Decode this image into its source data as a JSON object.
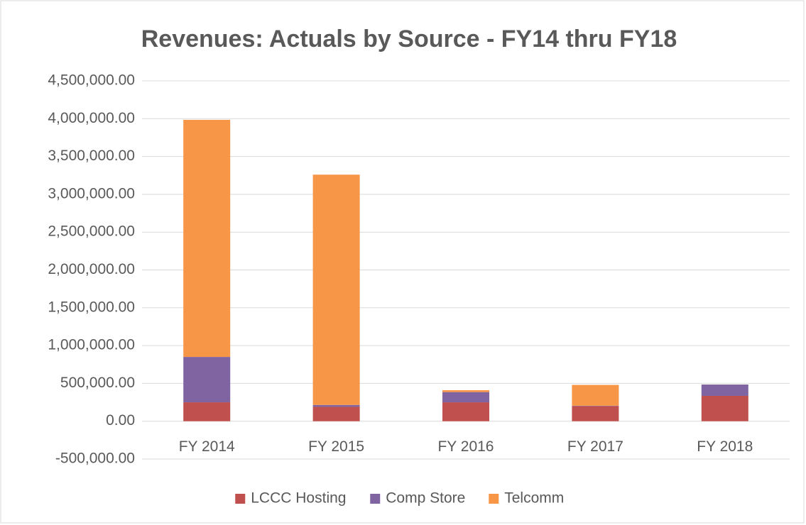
{
  "chart_data": {
    "type": "stacked_bar",
    "title": "Revenues: Actuals by Source - FY14 thru FY18",
    "categories": [
      "FY 2014",
      "FY 2015",
      "FY 2016",
      "FY 2017",
      "FY 2018"
    ],
    "series": [
      {
        "name": "LCCC Hosting",
        "color": "#c0504d",
        "values": [
          250000,
          190000,
          250000,
          200000,
          335000
        ]
      },
      {
        "name": "Comp Store",
        "color": "#8064a2",
        "values": [
          600000,
          25000,
          135000,
          5000,
          150000
        ]
      },
      {
        "name": "Telcomm",
        "color": "#f79646",
        "values": [
          3135000,
          3045000,
          25000,
          275000,
          0
        ]
      }
    ],
    "ylim": [
      -500000,
      4500000
    ],
    "yticks": [
      {
        "value": -500000,
        "label": "-500,000.00"
      },
      {
        "value": 0,
        "label": "0.00"
      },
      {
        "value": 500000,
        "label": "500,000.00"
      },
      {
        "value": 1000000,
        "label": "1,000,000.00"
      },
      {
        "value": 1500000,
        "label": "1,500,000.00"
      },
      {
        "value": 2000000,
        "label": "2,000,000.00"
      },
      {
        "value": 2500000,
        "label": "2,500,000.00"
      },
      {
        "value": 3000000,
        "label": "3,000,000.00"
      },
      {
        "value": 3500000,
        "label": "3,500,000.00"
      },
      {
        "value": 4000000,
        "label": "4,000,000.00"
      },
      {
        "value": 4500000,
        "label": "4,500,000.00"
      }
    ],
    "grid": true,
    "legend": "bottom"
  }
}
